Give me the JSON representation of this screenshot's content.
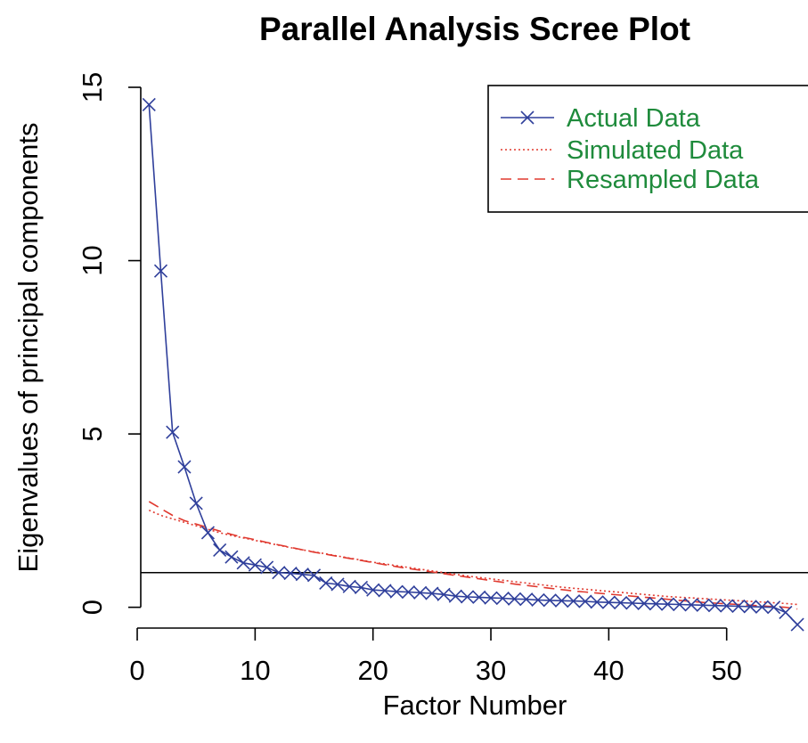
{
  "chart_data": {
    "type": "line",
    "title": "Parallel Analysis Scree Plot",
    "xlabel": "Factor Number",
    "ylabel": "Eigenvalues of principal components",
    "xlim": [
      0.3,
      56.9
    ],
    "ylim": [
      -0.6,
      15.0
    ],
    "x_ticks": [
      0,
      10,
      20,
      30,
      40,
      50
    ],
    "y_ticks": [
      0,
      5,
      10,
      15
    ],
    "reference_line": 1,
    "legend": {
      "position": "top-right",
      "text_color": "#1f8b3c"
    },
    "series": [
      {
        "name": "Actual Data",
        "style": "solid-with-x-markers",
        "color": "#2f3f9b",
        "x": [
          1,
          2,
          3,
          4,
          5,
          6,
          7,
          8,
          9,
          10,
          11,
          12,
          13,
          14,
          15,
          16,
          17,
          18,
          19,
          20,
          21,
          22,
          23,
          24,
          25,
          26,
          27,
          28,
          29,
          30,
          31,
          32,
          33,
          34,
          35,
          36,
          37,
          38,
          39,
          40,
          41,
          42,
          43,
          44,
          45,
          46,
          47,
          48,
          49,
          50,
          51,
          52,
          53,
          54,
          55,
          56
        ],
        "y": [
          14.5,
          9.7,
          5.05,
          4.05,
          3.0,
          2.15,
          1.65,
          1.45,
          1.28,
          1.22,
          1.15,
          1.0,
          0.98,
          0.95,
          0.92,
          0.7,
          0.66,
          0.6,
          0.57,
          0.5,
          0.48,
          0.45,
          0.44,
          0.42,
          0.4,
          0.37,
          0.32,
          0.3,
          0.29,
          0.27,
          0.26,
          0.24,
          0.23,
          0.21,
          0.2,
          0.19,
          0.18,
          0.17,
          0.15,
          0.14,
          0.13,
          0.12,
          0.11,
          0.1,
          0.09,
          0.08,
          0.07,
          0.06,
          0.05,
          0.04,
          0.03,
          0.02,
          0.01,
          0.0,
          -0.15,
          -0.5
        ]
      },
      {
        "name": "Simulated Data",
        "style": "dotted",
        "color": "#e0392f",
        "x": [
          1,
          2,
          3,
          4,
          5,
          6,
          7,
          8,
          9,
          10,
          11,
          12,
          13,
          14,
          15,
          16,
          17,
          18,
          19,
          20,
          21,
          22,
          23,
          24,
          25,
          26,
          27,
          28,
          29,
          30,
          31,
          32,
          33,
          34,
          35,
          36,
          37,
          38,
          39,
          40,
          41,
          42,
          43,
          44,
          45,
          46,
          47,
          48,
          49,
          50,
          51,
          52,
          53,
          54,
          55,
          56
        ],
        "y": [
          2.8,
          2.65,
          2.55,
          2.45,
          2.35,
          2.25,
          2.15,
          2.07,
          2.0,
          1.93,
          1.86,
          1.79,
          1.72,
          1.66,
          1.6,
          1.54,
          1.48,
          1.42,
          1.36,
          1.3,
          1.25,
          1.2,
          1.15,
          1.1,
          1.05,
          1.0,
          0.95,
          0.9,
          0.86,
          0.82,
          0.78,
          0.74,
          0.7,
          0.66,
          0.62,
          0.58,
          0.55,
          0.52,
          0.49,
          0.46,
          0.43,
          0.4,
          0.37,
          0.34,
          0.31,
          0.29,
          0.27,
          0.25,
          0.23,
          0.21,
          0.19,
          0.17,
          0.15,
          0.13,
          0.11,
          0.08
        ]
      },
      {
        "name": "Resampled Data",
        "style": "dashed",
        "color": "#e0392f",
        "x": [
          1,
          2,
          3,
          4,
          5,
          6,
          7,
          8,
          9,
          10,
          11,
          12,
          13,
          14,
          15,
          16,
          17,
          18,
          19,
          20,
          21,
          22,
          23,
          24,
          25,
          26,
          27,
          28,
          29,
          30,
          31,
          32,
          33,
          34,
          35,
          36,
          37,
          38,
          39,
          40,
          41,
          42,
          43,
          44,
          45,
          46,
          47,
          48,
          49,
          50,
          51,
          52,
          53,
          54,
          55,
          56
        ],
        "y": [
          3.05,
          2.85,
          2.65,
          2.5,
          2.4,
          2.3,
          2.2,
          2.1,
          2.02,
          1.95,
          1.87,
          1.8,
          1.73,
          1.66,
          1.59,
          1.53,
          1.47,
          1.41,
          1.35,
          1.29,
          1.23,
          1.17,
          1.12,
          1.07,
          1.02,
          0.97,
          0.92,
          0.87,
          0.82,
          0.77,
          0.72,
          0.67,
          0.63,
          0.59,
          0.55,
          0.51,
          0.47,
          0.44,
          0.41,
          0.38,
          0.35,
          0.32,
          0.29,
          0.26,
          0.23,
          0.2,
          0.17,
          0.14,
          0.12,
          0.1,
          0.08,
          0.06,
          0.04,
          0.02,
          0.0,
          -0.05
        ]
      }
    ]
  }
}
